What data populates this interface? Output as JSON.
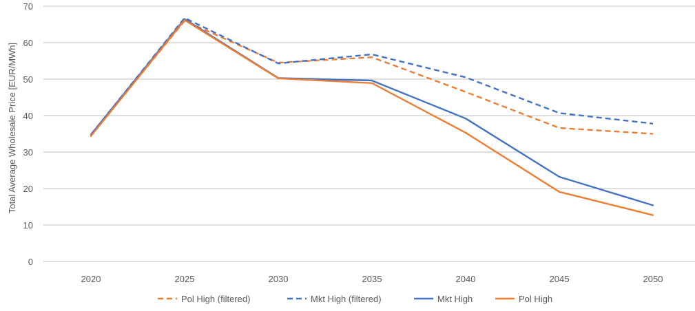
{
  "chart_data": {
    "type": "line",
    "title": "",
    "xlabel": "",
    "ylabel": "Total Average Wholesale Price [EUR/MWh]",
    "categories": [
      "2020",
      "2025",
      "2030",
      "2035",
      "2040",
      "2045",
      "2050"
    ],
    "ylim": [
      0,
      70
    ],
    "yticks": [
      0,
      10,
      20,
      30,
      40,
      50,
      60,
      70
    ],
    "grid": true,
    "legend_position": "bottom",
    "series": [
      {
        "name": "Pol High (filtered)",
        "color": "#ED7D31",
        "dash": "dashed",
        "values": [
          34.5,
          66.0,
          54.5,
          56.0,
          46.5,
          36.6,
          35.0
        ]
      },
      {
        "name": "Mkt High (filtered)",
        "color": "#4472C4",
        "dash": "dashed",
        "values": [
          34.8,
          66.8,
          54.3,
          56.8,
          50.5,
          40.7,
          37.8
        ]
      },
      {
        "name": "Mkt High",
        "color": "#4472C4",
        "dash": "solid",
        "values": [
          34.8,
          66.5,
          50.3,
          49.6,
          39.2,
          23.2,
          15.4
        ]
      },
      {
        "name": "Pol High",
        "color": "#ED7D31",
        "dash": "solid",
        "values": [
          34.4,
          66.2,
          50.2,
          48.9,
          35.3,
          19.1,
          12.7
        ]
      }
    ]
  }
}
